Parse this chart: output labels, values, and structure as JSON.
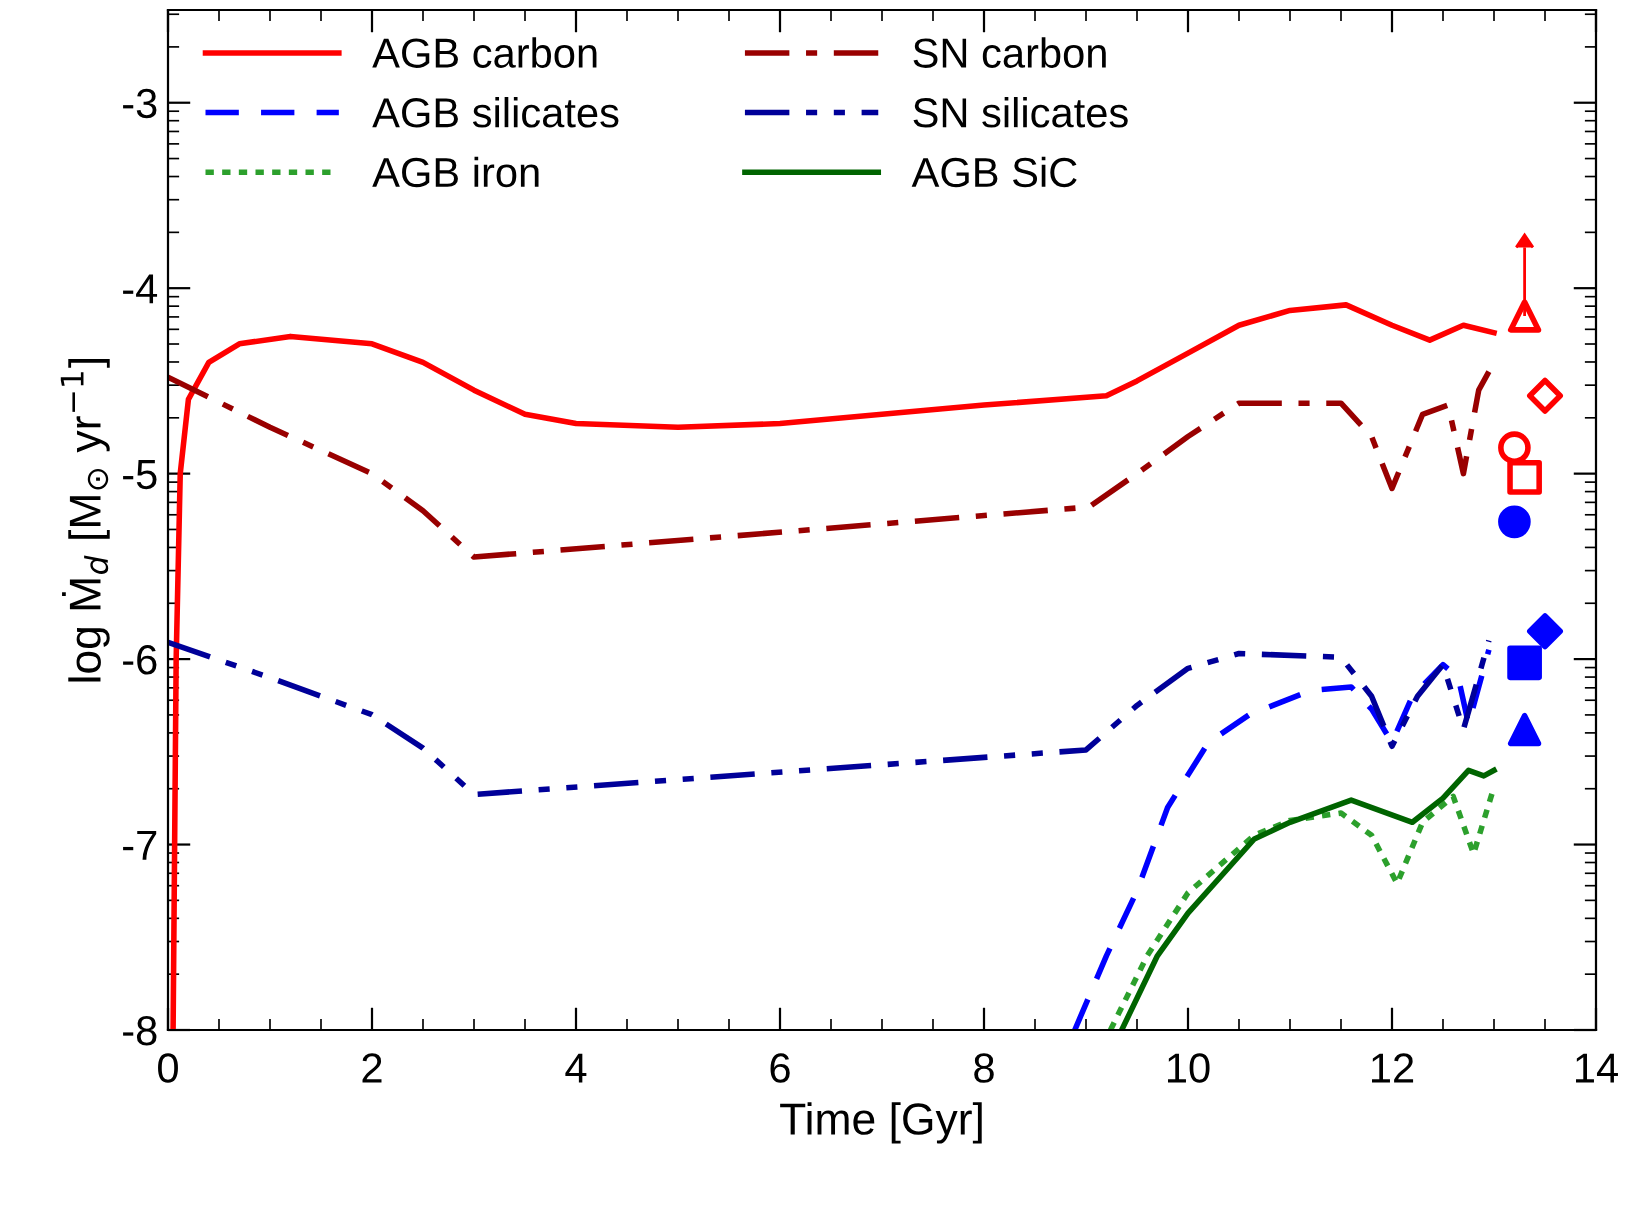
{
  "chart_data": {
    "type": "line",
    "xlabel": "Time [Gyr]",
    "ylabel": "log Ṁ$_{d}$ [M$_{⊙}$ yr$^{−1}$]",
    "xlim": [
      0,
      14
    ],
    "ylim": [
      -8,
      -2.5
    ],
    "xticks": [
      0,
      2,
      4,
      6,
      8,
      10,
      12,
      14
    ],
    "yticks": [
      -8,
      -7,
      -6,
      -5,
      -4,
      -3
    ],
    "legend": "top left",
    "grid": false,
    "series": [
      {
        "name": "AGB carbon",
        "color": "#ff0000",
        "line_style": "solid",
        "x": [
          0.05,
          0.08,
          0.12,
          0.2,
          0.4,
          0.7,
          1.2,
          2,
          2.5,
          3,
          3.5,
          4,
          5,
          6,
          7,
          8,
          9.2,
          9.5,
          10,
          10.5,
          11,
          11.55,
          12,
          12.37,
          12.7,
          13.0
        ],
        "values": [
          -8,
          -6,
          -5,
          -4.6,
          -4.4,
          -4.3,
          -4.26,
          -4.3,
          -4.4,
          -4.55,
          -4.68,
          -4.73,
          -4.75,
          -4.73,
          -4.68,
          -4.63,
          -4.58,
          -4.5,
          -4.35,
          -4.2,
          -4.12,
          -4.09,
          -4.2,
          -4.28,
          -4.2,
          -4.24
        ]
      },
      {
        "name": "AGB silicates",
        "color": "#0000ff",
        "line_style": "dashed",
        "x": [
          8.89,
          9.2,
          9.5,
          9.8,
          10.2,
          10.6,
          11.2,
          11.6,
          11.8,
          12.0,
          12.2,
          12.5,
          12.65,
          12.75,
          12.95
        ],
        "values": [
          -8,
          -7.6,
          -7.25,
          -6.8,
          -6.45,
          -6.3,
          -6.17,
          -6.15,
          -6.27,
          -6.45,
          -6.2,
          -6.03,
          -6.1,
          -6.35,
          -5.95
        ]
      },
      {
        "name": "AGB iron",
        "color": "#2ca02c",
        "line_style": "dotted",
        "x": [
          9.24,
          9.6,
          10.0,
          10.65,
          11.0,
          11.5,
          11.8,
          12.05,
          12.3,
          12.6,
          12.8,
          13.0
        ],
        "values": [
          -8,
          -7.6,
          -7.26,
          -6.95,
          -6.87,
          -6.83,
          -6.95,
          -7.21,
          -6.88,
          -6.74,
          -7.05,
          -6.69
        ]
      },
      {
        "name": "SN carbon",
        "color": "#990000",
        "line_style": "dashdot",
        "x": [
          0,
          1,
          2,
          2.5,
          3,
          9.03,
          9.5,
          10,
          10.5,
          11.5,
          11.8,
          12.0,
          12.3,
          12.55,
          12.7,
          12.85,
          12.95
        ],
        "values": [
          -4.48,
          -4.75,
          -5.0,
          -5.2,
          -5.45,
          -5.18,
          -5.0,
          -4.8,
          -4.62,
          -4.62,
          -4.8,
          -5.08,
          -4.68,
          -4.63,
          -5.0,
          -4.55,
          -4.45
        ]
      },
      {
        "name": "SN silicates",
        "color": "#000099",
        "line_style": "dashdotdot",
        "x": [
          0,
          1,
          2,
          2.5,
          3,
          9.0,
          9.5,
          10,
          10.5,
          11.5,
          11.8,
          12.0,
          12.25,
          12.5,
          12.7,
          12.95
        ],
        "values": [
          -5.91,
          -6.1,
          -6.3,
          -6.48,
          -6.73,
          -6.49,
          -6.25,
          -6.05,
          -5.97,
          -5.99,
          -6.2,
          -6.47,
          -6.2,
          -6.03,
          -6.38,
          -5.9
        ]
      },
      {
        "name": "AGB SiC",
        "color": "#006400",
        "line_style": "solid",
        "x": [
          9.35,
          9.7,
          10.0,
          10.65,
          11.0,
          11.6,
          12.2,
          12.5,
          12.75,
          12.9,
          13.0
        ],
        "values": [
          -8,
          -7.6,
          -7.37,
          -6.97,
          -6.88,
          -6.76,
          -6.88,
          -6.75,
          -6.6,
          -6.63,
          -6.6
        ]
      },
      {
        "type": "scatter",
        "marker": "triangle",
        "color": "#ff0000",
        "x": [
          13.3
        ],
        "values": [
          -4.15
        ],
        "errors": [
          [
            -4.15,
            -3.78
          ]
        ]
      },
      {
        "type": "scatter",
        "marker": "diamond",
        "color": "#ff0000",
        "x": [
          13.5
        ],
        "values": [
          -4.58
        ]
      },
      {
        "type": "scatter",
        "marker": "circle",
        "color": "#ff0000",
        "x": [
          13.2
        ],
        "values": [
          -4.86
        ]
      },
      {
        "type": "scatter",
        "marker": "square",
        "color": "#ff0000",
        "x": [
          13.3
        ],
        "values": [
          -5.02
        ]
      },
      {
        "type": "scatter",
        "marker": "circle",
        "color": "#0000ff",
        "x": [
          13.2
        ],
        "values": [
          -5.26
        ]
      },
      {
        "type": "scatter",
        "marker": "diamond",
        "color": "#0000ff",
        "x": [
          13.5
        ],
        "values": [
          -5.85
        ]
      },
      {
        "type": "scatter",
        "marker": "square",
        "color": "#0000ff",
        "x": [
          13.3
        ],
        "values": [
          -6.02
        ]
      },
      {
        "type": "scatter",
        "marker": "triangle",
        "color": "#0000ff",
        "x": [
          13.3
        ],
        "values": [
          -6.38
        ]
      }
    ]
  }
}
